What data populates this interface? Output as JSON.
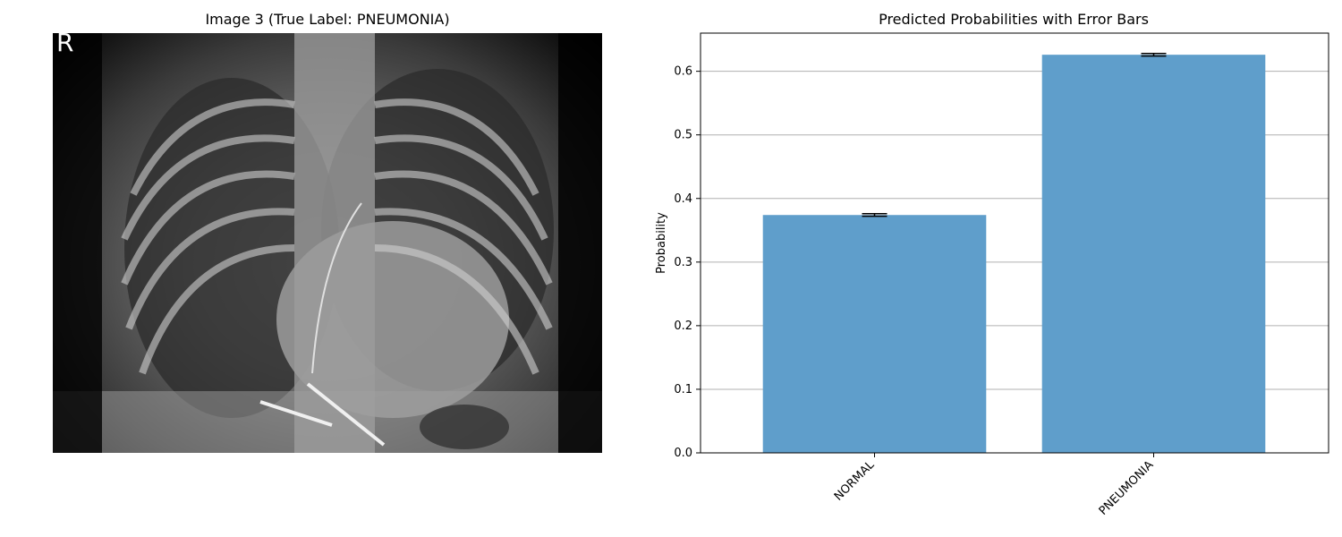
{
  "xray": {
    "title": "Image 3 (True Label: PNEUMONIA)",
    "orientation_marker": "R",
    "depicts": "chest X-ray radiograph"
  },
  "chart_data": {
    "type": "bar",
    "title": "Predicted Probabilities with Error Bars",
    "xlabel": "",
    "ylabel": "Probability",
    "categories": [
      "NORMAL",
      "PNEUMONIA"
    ],
    "values": [
      0.374,
      0.626
    ],
    "errors": [
      0.002,
      0.002
    ],
    "ylim": [
      0,
      0.66
    ],
    "yticks": [
      0.0,
      0.1,
      0.2,
      0.3,
      0.4,
      0.5,
      0.6
    ],
    "ytick_labels": [
      "0.0",
      "0.1",
      "0.2",
      "0.3",
      "0.4",
      "0.5",
      "0.6"
    ],
    "grid": "horizontal",
    "bar_color": "#5f9ecb",
    "x_tick_rotation_deg": 45
  }
}
